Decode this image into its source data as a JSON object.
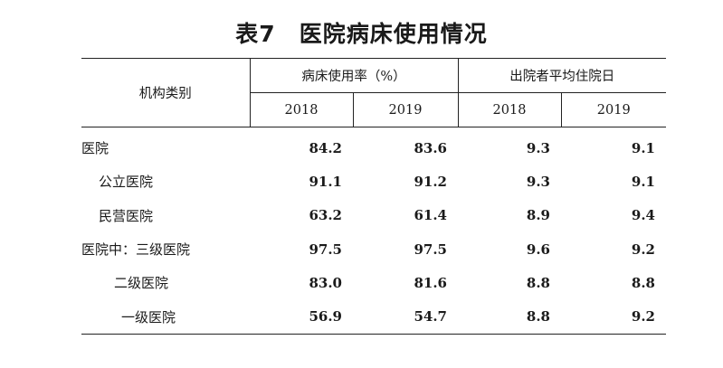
{
  "title": "表7　医院病床使用情况",
  "table": {
    "stub_header": "机构类别",
    "groups": [
      {
        "label": "病床使用率（%）",
        "years": [
          "2018",
          "2019"
        ]
      },
      {
        "label": "出院者平均住院日",
        "years": [
          "2018",
          "2019"
        ]
      }
    ],
    "rows": [
      {
        "label": "医院",
        "indent": 0,
        "values": [
          "84.2",
          "83.6",
          "9.3",
          "9.1"
        ]
      },
      {
        "label": "公立医院",
        "indent": 1,
        "values": [
          "91.1",
          "91.2",
          "9.3",
          "9.1"
        ]
      },
      {
        "label": "民营医院",
        "indent": 1,
        "values": [
          "63.2",
          "61.4",
          "8.9",
          "9.4"
        ]
      },
      {
        "label": "医院中：三级医院",
        "indent": 0,
        "values": [
          "97.5",
          "97.5",
          "9.6",
          "9.2"
        ]
      },
      {
        "label": "二级医院",
        "indent": 2,
        "values": [
          "83.0",
          "81.6",
          "8.8",
          "8.8"
        ]
      },
      {
        "label": "一级医院",
        "indent": 3,
        "values": [
          "56.9",
          "54.7",
          "8.8",
          "9.2"
        ]
      }
    ]
  }
}
